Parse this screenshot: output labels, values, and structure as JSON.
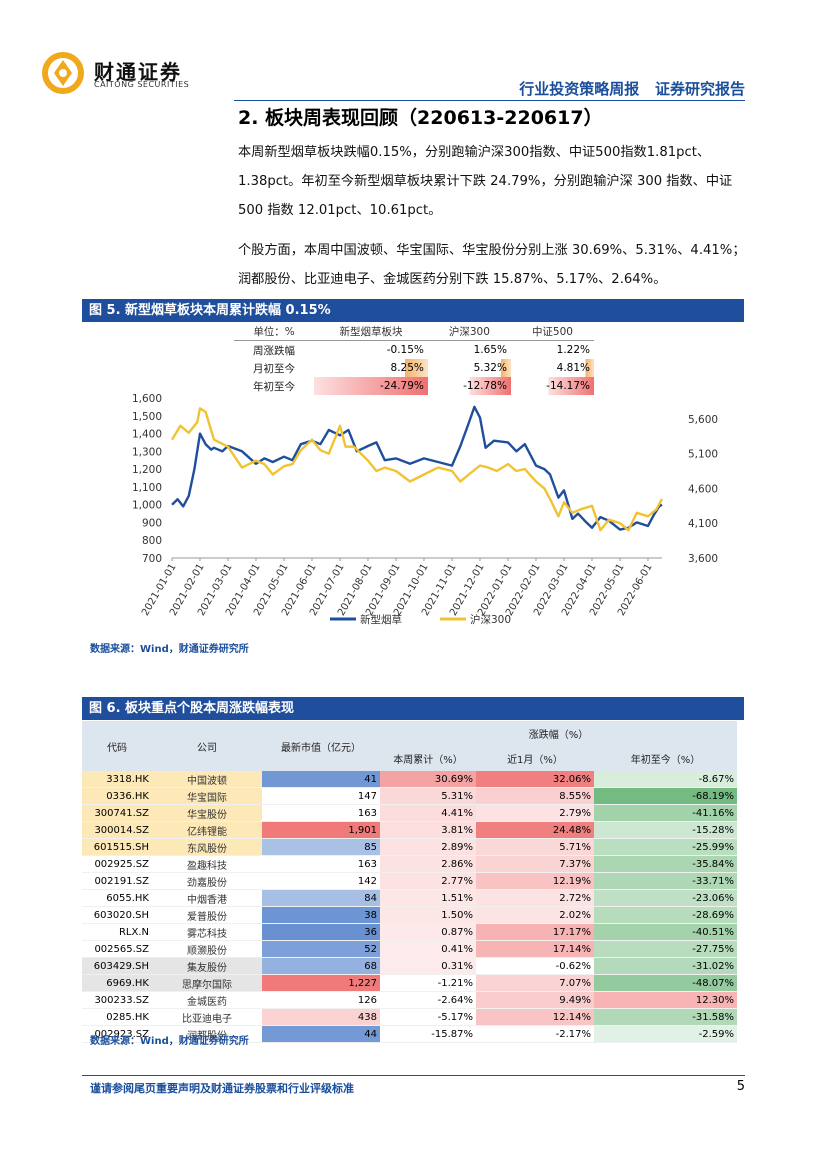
{
  "brand": {
    "name_cn": "财通证券",
    "name_en": "CAITONG SECURITIES"
  },
  "header": {
    "report_type": "行业投资策略周报",
    "report_kind": "证券研究报告"
  },
  "section": {
    "title": "2. 板块周表现回顾（220613-220617）"
  },
  "paragraphs": {
    "p1": "本周新型烟草板块跌幅0.15%，分别跑输沪深300指数、中证500指数1.81pct、1.38pct。年初至今新型烟草板块累计下跌 24.79%，分别跑输沪深 300 指数、中证 500 指数 12.01pct、10.61pct。",
    "p2": "个股方面，本周中国波顿、华宝国际、华宝股份分别上涨 30.69%、5.31%、4.41%；润都股份、比亚迪电子、金城医药分别下跌 15.87%、5.17%、2.64%。"
  },
  "fig5": {
    "title": "图 5. 新型烟草板块本周累计跌幅 0.15%",
    "source": "数据来源：Wind，财通证券研究所",
    "mini_table": {
      "headers": [
        "单位：%",
        "新型烟草板块",
        "沪深300",
        "中证500"
      ],
      "rows": [
        {
          "label": "周涨跌幅",
          "values": [
            "-0.15%",
            "1.65%",
            "1.22%"
          ]
        },
        {
          "label": "月初至今",
          "values": [
            "8.25%",
            "5.32%",
            "4.81%"
          ]
        },
        {
          "label": "年初至今",
          "values": [
            "-24.79%",
            "-12.78%",
            "-14.17%"
          ]
        }
      ]
    }
  },
  "chart_data": {
    "type": "line",
    "title": "",
    "x_ticks": [
      "2021-01-01",
      "2021-02-01",
      "2021-03-01",
      "2021-04-01",
      "2021-05-01",
      "2021-06-01",
      "2021-07-01",
      "2021-08-01",
      "2021-09-01",
      "2021-10-01",
      "2021-11-01",
      "2021-12-01",
      "2022-01-01",
      "2022-02-01",
      "2022-03-01",
      "2022-04-01",
      "2022-05-01",
      "2022-06-01"
    ],
    "y_left_ticks": [
      "700",
      "800",
      "900",
      "1,000",
      "1,100",
      "1,200",
      "1,300",
      "1,400",
      "1,500",
      "1,600"
    ],
    "y_left_range": [
      700,
      1600
    ],
    "y_right_ticks": [
      "3,600",
      "4,100",
      "4,600",
      "5,100",
      "5,600"
    ],
    "y_right_range": [
      3600,
      5900
    ],
    "series": [
      {
        "name": "新型烟草",
        "axis": "left",
        "color": "#1f4e9c",
        "x": [
          0,
          0.2,
          0.4,
          0.6,
          0.8,
          1.0,
          1.2,
          1.4,
          1.5,
          1.8,
          2.0,
          2.5,
          3.0,
          3.3,
          3.6,
          4.0,
          4.3,
          4.6,
          5.0,
          5.3,
          5.6,
          6.0,
          6.3,
          6.6,
          7.0,
          7.3,
          7.6,
          8.0,
          8.5,
          9.0,
          9.5,
          10.0,
          10.3,
          10.6,
          10.8,
          11.0,
          11.2,
          11.5,
          12.0,
          12.3,
          12.6,
          13.0,
          13.3,
          13.5,
          13.8,
          14.0,
          14.3,
          14.5,
          14.8,
          15.0,
          15.3,
          15.6,
          16.0,
          16.3,
          16.6,
          17.0,
          17.2,
          17.4,
          17.5
        ],
        "y": [
          1000,
          1030,
          990,
          1050,
          1200,
          1400,
          1340,
          1310,
          1320,
          1300,
          1330,
          1300,
          1230,
          1260,
          1240,
          1270,
          1250,
          1340,
          1360,
          1340,
          1420,
          1390,
          1420,
          1300,
          1330,
          1350,
          1250,
          1260,
          1230,
          1260,
          1240,
          1220,
          1330,
          1460,
          1550,
          1490,
          1320,
          1360,
          1350,
          1300,
          1340,
          1220,
          1200,
          1170,
          1040,
          1080,
          920,
          950,
          900,
          870,
          930,
          910,
          860,
          870,
          900,
          880,
          940,
          990,
          1000
        ]
      },
      {
        "name": "沪深300",
        "axis": "right",
        "color": "#f1c232",
        "x": [
          0,
          0.3,
          0.6,
          0.9,
          1.0,
          1.2,
          1.5,
          2.0,
          2.5,
          3.0,
          3.3,
          3.6,
          4.0,
          4.3,
          4.6,
          5.0,
          5.3,
          5.6,
          6.0,
          6.2,
          6.5,
          7.0,
          7.3,
          7.6,
          8.0,
          8.5,
          9.0,
          9.5,
          10.0,
          10.3,
          10.6,
          11.0,
          11.3,
          11.6,
          12.0,
          12.3,
          12.6,
          13.0,
          13.3,
          13.5,
          13.8,
          14.0,
          14.3,
          14.6,
          15.0,
          15.3,
          15.6,
          16.0,
          16.3,
          16.6,
          17.0,
          17.3,
          17.5
        ],
        "y": [
          5300,
          5500,
          5400,
          5550,
          5750,
          5700,
          5300,
          5200,
          4900,
          5000,
          4950,
          4800,
          4920,
          4950,
          5150,
          5300,
          5150,
          5100,
          5500,
          5200,
          5200,
          5000,
          4850,
          4900,
          4850,
          4700,
          4800,
          4900,
          4850,
          4700,
          4800,
          4930,
          4900,
          4850,
          4950,
          4850,
          4880,
          4700,
          4600,
          4450,
          4200,
          4400,
          4250,
          4300,
          4350,
          4000,
          4150,
          4100,
          4000,
          4250,
          4200,
          4300,
          4450
        ]
      }
    ],
    "legend": [
      "新型烟草",
      "沪深300"
    ],
    "legend_position": "bottom"
  },
  "fig6": {
    "title": "图 6. 板块重点个股本周涨跌幅表现",
    "source": "数据来源：Wind，财通证券研究所",
    "headers": {
      "code": "代码",
      "company": "公司",
      "mktcap": "最新市值（亿元）",
      "group": "涨跌幅（%）",
      "week": "本周累计（%）",
      "month": "近1月（%）",
      "ytd": "年初至今（%）"
    },
    "rows": [
      {
        "code": "3318.HK",
        "company": "中国波顿",
        "mktcap": "41",
        "week": "30.69%",
        "month": "32.06%",
        "ytd": "-8.67%"
      },
      {
        "code": "0336.HK",
        "company": "华宝国际",
        "mktcap": "147",
        "week": "5.31%",
        "month": "8.55%",
        "ytd": "-68.19%"
      },
      {
        "code": "300741.SZ",
        "company": "华宝股份",
        "mktcap": "163",
        "week": "4.41%",
        "month": "2.79%",
        "ytd": "-41.16%"
      },
      {
        "code": "300014.SZ",
        "company": "亿纬锂能",
        "mktcap": "1,901",
        "week": "3.81%",
        "month": "24.48%",
        "ytd": "-15.28%"
      },
      {
        "code": "601515.SH",
        "company": "东风股份",
        "mktcap": "85",
        "week": "2.89%",
        "month": "5.71%",
        "ytd": "-25.99%"
      },
      {
        "code": "002925.SZ",
        "company": "盈趣科技",
        "mktcap": "163",
        "week": "2.86%",
        "month": "7.37%",
        "ytd": "-35.84%"
      },
      {
        "code": "002191.SZ",
        "company": "劲嘉股份",
        "mktcap": "142",
        "week": "2.77%",
        "month": "12.19%",
        "ytd": "-33.71%"
      },
      {
        "code": "6055.HK",
        "company": "中烟香港",
        "mktcap": "84",
        "week": "1.51%",
        "month": "2.72%",
        "ytd": "-23.06%"
      },
      {
        "code": "603020.SH",
        "company": "爱普股份",
        "mktcap": "38",
        "week": "1.50%",
        "month": "2.02%",
        "ytd": "-28.69%"
      },
      {
        "code": "RLX.N",
        "company": "雾芯科技",
        "mktcap": "36",
        "week": "0.87%",
        "month": "17.17%",
        "ytd": "-40.51%"
      },
      {
        "code": "002565.SZ",
        "company": "顺灏股份",
        "mktcap": "52",
        "week": "0.41%",
        "month": "17.14%",
        "ytd": "-27.75%"
      },
      {
        "code": "603429.SH",
        "company": "集友股份",
        "mktcap": "68",
        "week": "0.31%",
        "month": "-0.62%",
        "ytd": "-31.02%"
      },
      {
        "code": "6969.HK",
        "company": "思摩尔国际",
        "mktcap": "1,227",
        "week": "-1.21%",
        "month": "7.07%",
        "ytd": "-48.07%"
      },
      {
        "code": "300233.SZ",
        "company": "金城医药",
        "mktcap": "126",
        "week": "-2.64%",
        "month": "9.49%",
        "ytd": "12.30%"
      },
      {
        "code": "0285.HK",
        "company": "比亚迪电子",
        "mktcap": "438",
        "week": "-5.17%",
        "month": "12.14%",
        "ytd": "-31.58%"
      },
      {
        "code": "002923.SZ",
        "company": "润都股份",
        "mktcap": "44",
        "week": "-15.87%",
        "month": "-2.17%",
        "ytd": "-2.59%"
      }
    ]
  },
  "footer": {
    "disclaimer": "谨请参阅尾页重要声明及财通证券股票和行业评级标准",
    "page": "5"
  },
  "colors": {
    "brand_blue": "#1f4e9c",
    "logo_gold": "#f0a81c",
    "series_yellow": "#f1c232"
  }
}
